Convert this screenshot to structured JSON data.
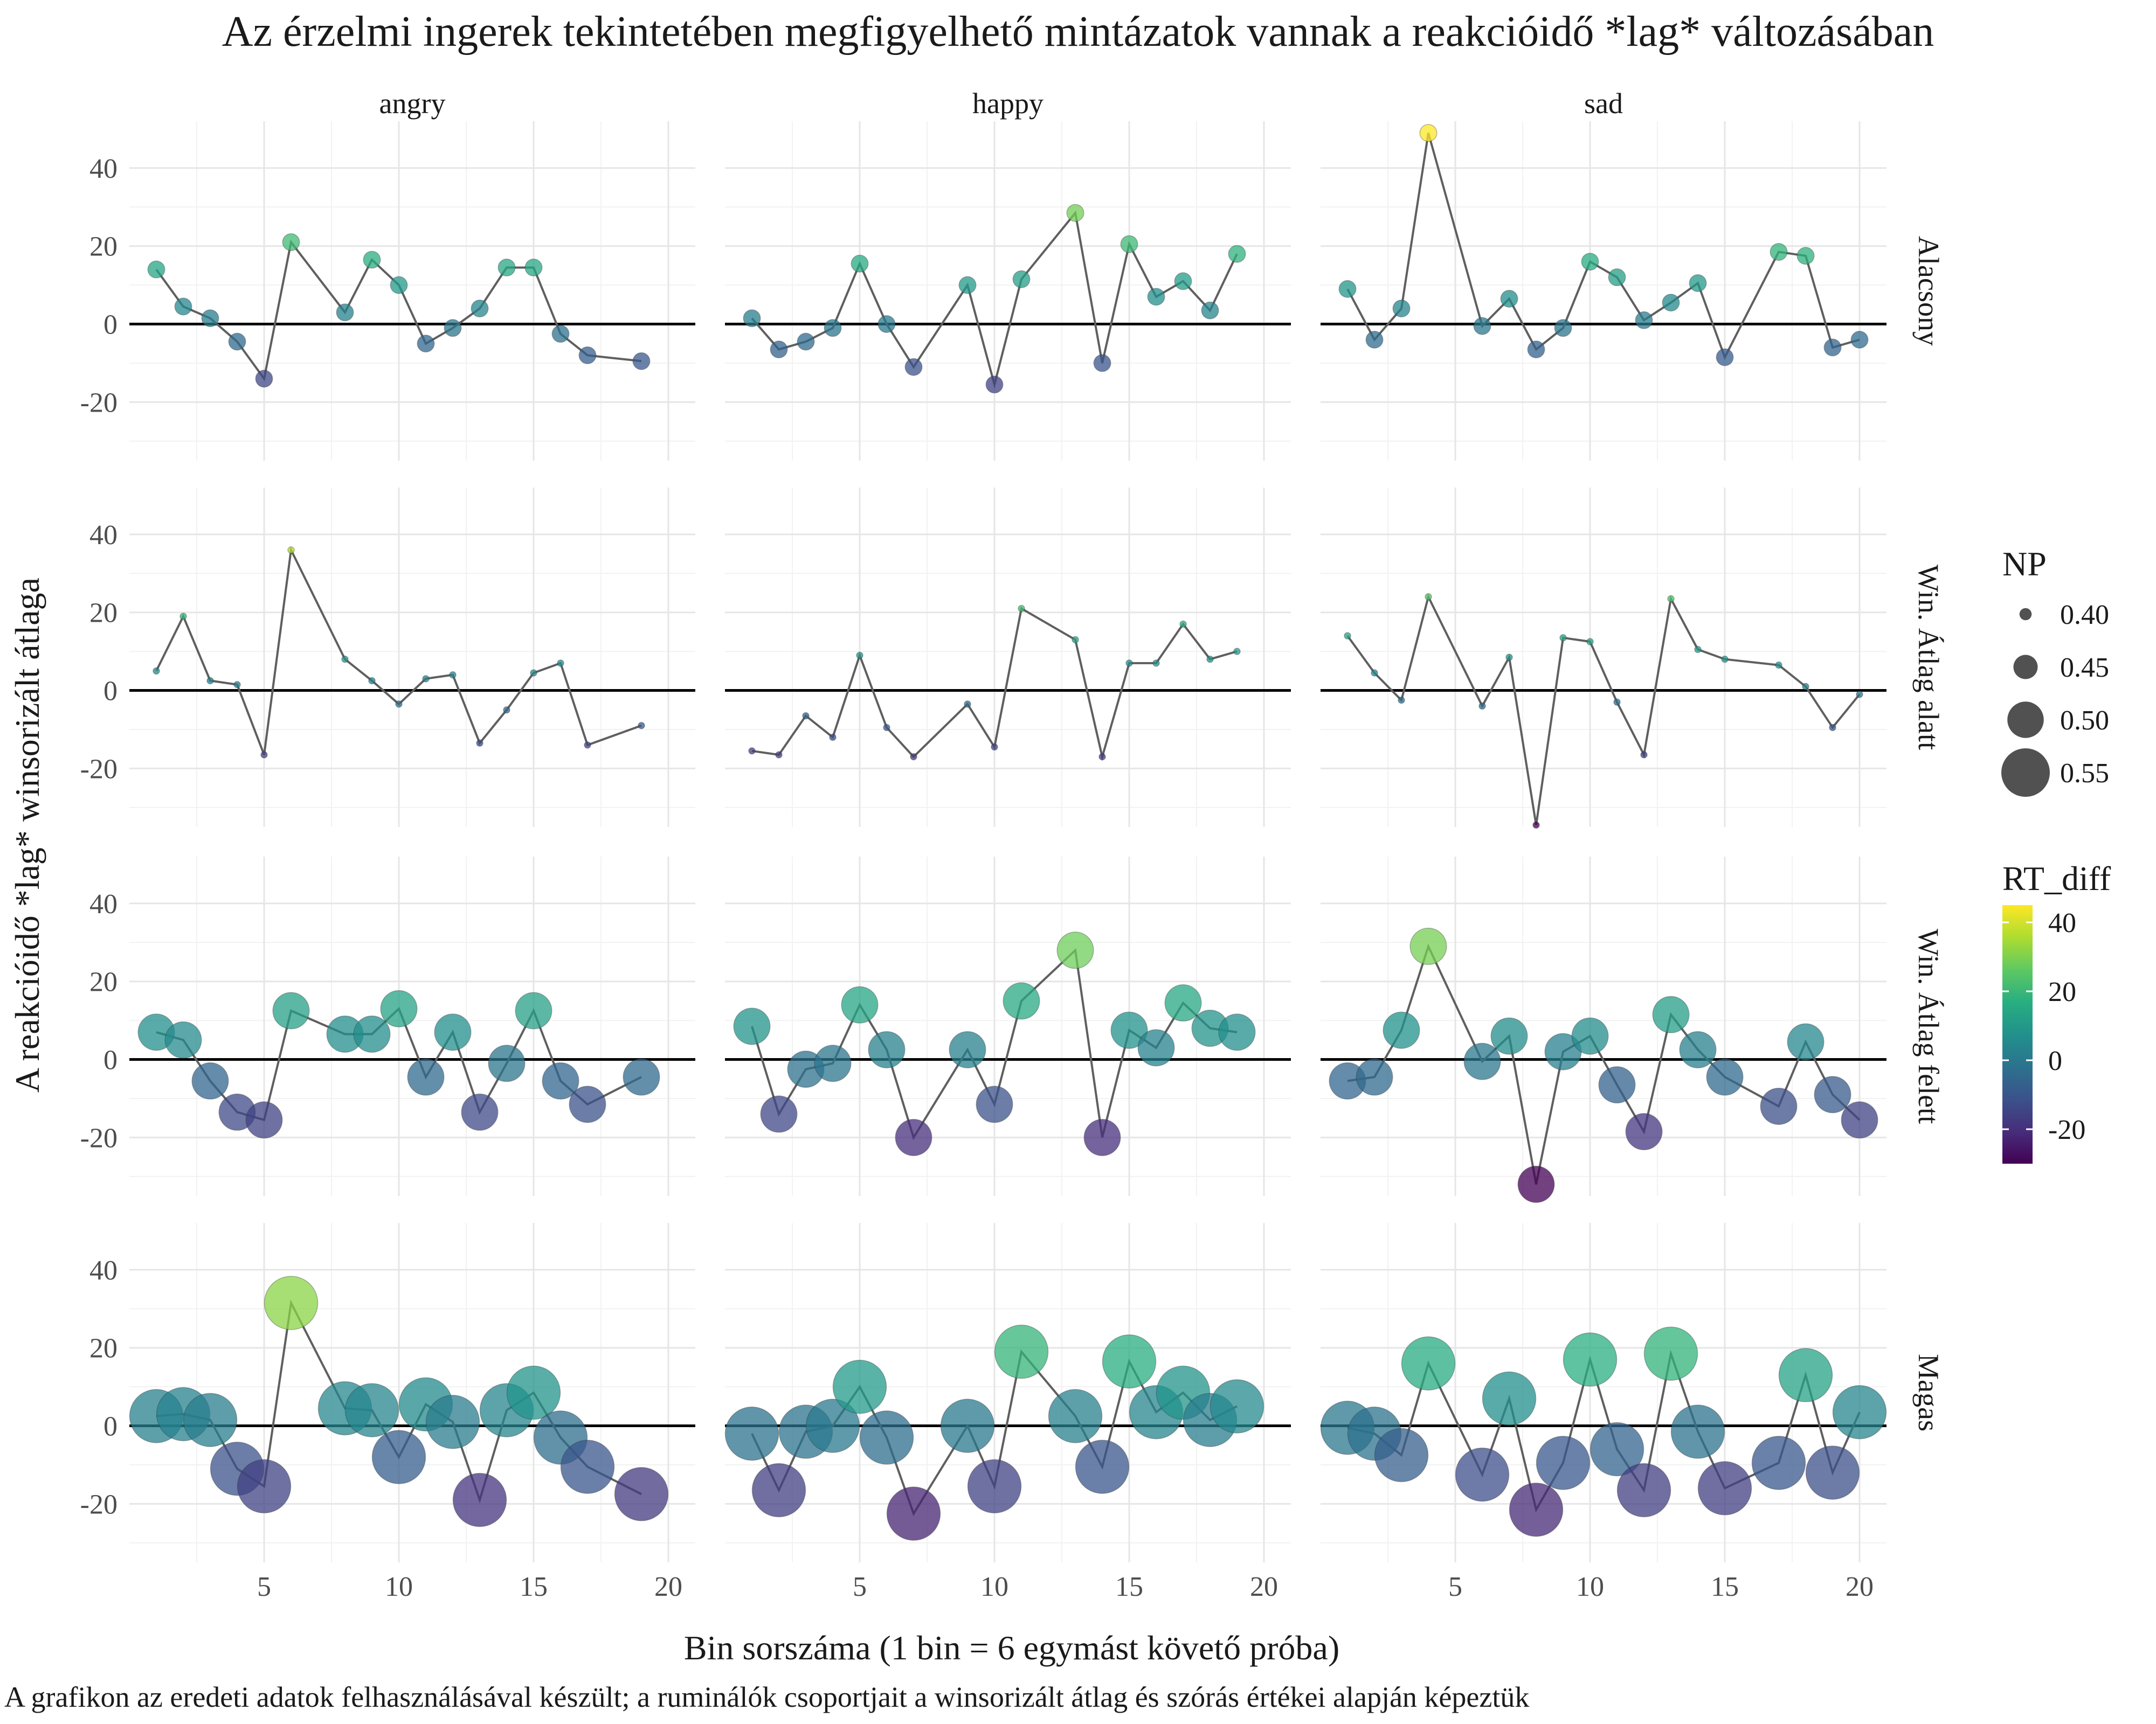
{
  "chart_data": {
    "type": "scatter",
    "title": "Az érzelmi ingerek tekintetében megfigyelhető mintázatok vannak a reakcióidő *lag* változásában",
    "xlabel": "Bin sorszáma (1 bin = 6 egymást követő próba)",
    "ylabel": "A reakcióidő *lag* winsorizált átlaga",
    "caption": "A grafikon az eredeti adatok felhasználásával készült; a ruminálók csoportjait a winsorizált átlag és szórás értékei alapján képeztük",
    "columns": [
      "angry",
      "happy",
      "sad"
    ],
    "rows": [
      "Alacsony",
      "Win. Átlag alatt",
      "Win. Átlag felett",
      "Magas"
    ],
    "x_ticks": [
      5,
      10,
      15,
      20
    ],
    "y_ticks": [
      -20,
      0,
      20,
      40
    ],
    "xlim": [
      0,
      21
    ],
    "ylim": [
      -35,
      52
    ],
    "hline": 0,
    "legend_size": {
      "title": "NP",
      "values": [
        0.4,
        0.45,
        0.5,
        0.55
      ],
      "labels": [
        "0.40",
        "0.45",
        "0.50",
        "0.55"
      ]
    },
    "legend_color": {
      "title": "RT_diff",
      "range": [
        -30,
        45
      ],
      "ticks": [
        40,
        20,
        0,
        -20
      ],
      "colormap": "viridis"
    },
    "row_np": [
      0.42,
      0.37,
      0.5,
      0.57
    ],
    "panels": [
      {
        "row": "Alacsony",
        "col": "angry",
        "points": [
          [
            1,
            14
          ],
          [
            2,
            4.5
          ],
          [
            3,
            1.5
          ],
          [
            4,
            -4.5
          ],
          [
            5,
            -14
          ],
          [
            6,
            21
          ],
          [
            8,
            3
          ],
          [
            9,
            16.5
          ],
          [
            10,
            10
          ],
          [
            11,
            -5
          ],
          [
            12,
            -1
          ],
          [
            13,
            4
          ],
          [
            14,
            14.5
          ],
          [
            15,
            14.5
          ],
          [
            16,
            -2.5
          ],
          [
            17,
            -8
          ],
          [
            19,
            -9.5
          ]
        ]
      },
      {
        "row": "Alacsony",
        "col": "happy",
        "points": [
          [
            1,
            1.5
          ],
          [
            2,
            -6.5
          ],
          [
            3,
            -4.5
          ],
          [
            4,
            -1
          ],
          [
            5,
            15.5
          ],
          [
            6,
            0
          ],
          [
            7,
            -11
          ],
          [
            9,
            10
          ],
          [
            10,
            -15.5
          ],
          [
            11,
            11.5
          ],
          [
            13,
            28.5
          ],
          [
            14,
            -10
          ],
          [
            15,
            20.5
          ],
          [
            16,
            7
          ],
          [
            17,
            11
          ],
          [
            18,
            3.5
          ],
          [
            19,
            18
          ]
        ]
      },
      {
        "row": "Alacsony",
        "col": "sad",
        "points": [
          [
            1,
            9
          ],
          [
            2,
            -4
          ],
          [
            3,
            4
          ],
          [
            4,
            49
          ],
          [
            6,
            -0.5
          ],
          [
            7,
            6.5
          ],
          [
            8,
            -6.5
          ],
          [
            9,
            -1
          ],
          [
            10,
            16
          ],
          [
            11,
            12
          ],
          [
            12,
            1
          ],
          [
            13,
            5.5
          ],
          [
            14,
            10.5
          ],
          [
            15,
            -8.5
          ],
          [
            17,
            18.5
          ],
          [
            18,
            17.5
          ],
          [
            19,
            -6
          ],
          [
            20,
            -4
          ]
        ]
      },
      {
        "row": "Win. Átlag alatt",
        "col": "angry",
        "points": [
          [
            1,
            5
          ],
          [
            2,
            19
          ],
          [
            3,
            2.5
          ],
          [
            4,
            1.5
          ],
          [
            5,
            -16.5
          ],
          [
            6,
            36
          ],
          [
            8,
            8
          ],
          [
            9,
            2.5
          ],
          [
            10,
            -3.5
          ],
          [
            11,
            3
          ],
          [
            12,
            4
          ],
          [
            13,
            -13.5
          ],
          [
            14,
            -5
          ],
          [
            15,
            4.5
          ],
          [
            16,
            7
          ],
          [
            17,
            -14
          ],
          [
            19,
            -9
          ]
        ]
      },
      {
        "row": "Win. Átlag alatt",
        "col": "happy",
        "points": [
          [
            1,
            -15.5
          ],
          [
            2,
            -16.5
          ],
          [
            3,
            -6.5
          ],
          [
            4,
            -12
          ],
          [
            5,
            9
          ],
          [
            6,
            -9.5
          ],
          [
            7,
            -17
          ],
          [
            9,
            -3.5
          ],
          [
            10,
            -14.5
          ],
          [
            11,
            21
          ],
          [
            13,
            13
          ],
          [
            14,
            -17
          ],
          [
            15,
            7
          ],
          [
            16,
            7
          ],
          [
            17,
            17
          ],
          [
            18,
            8
          ],
          [
            19,
            10
          ]
        ]
      },
      {
        "row": "Win. Átlag alatt",
        "col": "sad",
        "points": [
          [
            1,
            14
          ],
          [
            2,
            4.5
          ],
          [
            3,
            -2.5
          ],
          [
            4,
            24
          ],
          [
            6,
            -4
          ],
          [
            7,
            8.5
          ],
          [
            8,
            -34.5
          ],
          [
            9,
            13.5
          ],
          [
            10,
            12.5
          ],
          [
            11,
            -3
          ],
          [
            12,
            -16.5
          ],
          [
            13,
            23.5
          ],
          [
            14,
            10.5
          ],
          [
            15,
            8
          ],
          [
            17,
            6.5
          ],
          [
            18,
            1
          ],
          [
            19,
            -9.5
          ],
          [
            20,
            -1
          ]
        ]
      },
      {
        "row": "Win. Átlag felett",
        "col": "angry",
        "points": [
          [
            1,
            7
          ],
          [
            2,
            5
          ],
          [
            3,
            -5.5
          ],
          [
            4,
            -13.5
          ],
          [
            5,
            -15.5
          ],
          [
            6,
            12.5
          ],
          [
            8,
            6.5
          ],
          [
            9,
            6.5
          ],
          [
            10,
            13
          ],
          [
            11,
            -4.5
          ],
          [
            12,
            7
          ],
          [
            13,
            -13.5
          ],
          [
            14,
            -1
          ],
          [
            15,
            12.5
          ],
          [
            16,
            -5.5
          ],
          [
            17,
            -11.5
          ],
          [
            19,
            -4.5
          ]
        ]
      },
      {
        "row": "Win. Átlag felett",
        "col": "happy",
        "points": [
          [
            1,
            8.5
          ],
          [
            2,
            -14
          ],
          [
            3,
            -2.5
          ],
          [
            4,
            -1
          ],
          [
            5,
            14
          ],
          [
            6,
            2.5
          ],
          [
            7,
            -20
          ],
          [
            9,
            2.5
          ],
          [
            10,
            -11.5
          ],
          [
            11,
            15
          ],
          [
            13,
            28
          ],
          [
            14,
            -20
          ],
          [
            15,
            7.5
          ],
          [
            16,
            3
          ],
          [
            17,
            14.5
          ],
          [
            18,
            8
          ],
          [
            19,
            7
          ]
        ]
      },
      {
        "row": "Win. Átlag felett",
        "col": "sad",
        "points": [
          [
            1,
            -5.5
          ],
          [
            2,
            -4.5
          ],
          [
            3,
            7.5
          ],
          [
            4,
            29
          ],
          [
            6,
            -0.5
          ],
          [
            7,
            6
          ],
          [
            8,
            -32
          ],
          [
            9,
            2
          ],
          [
            10,
            6
          ],
          [
            11,
            -6.5
          ],
          [
            12,
            -18.5
          ],
          [
            13,
            11.5
          ],
          [
            14,
            2.5
          ],
          [
            15,
            -4.5
          ],
          [
            17,
            -12
          ],
          [
            18,
            4.5
          ],
          [
            19,
            -9
          ],
          [
            20,
            -15.5
          ]
        ]
      },
      {
        "row": "Magas",
        "col": "angry",
        "points": [
          [
            1,
            2.5
          ],
          [
            2,
            3
          ],
          [
            3,
            1.5
          ],
          [
            4,
            -11
          ],
          [
            5,
            -15.5
          ],
          [
            6,
            31.5
          ],
          [
            8,
            4.5
          ],
          [
            9,
            4
          ],
          [
            10,
            -8
          ],
          [
            11,
            5.5
          ],
          [
            12,
            1
          ],
          [
            13,
            -19
          ],
          [
            14,
            4
          ],
          [
            15,
            8.5
          ],
          [
            16,
            -3
          ],
          [
            17,
            -10.5
          ],
          [
            19,
            -17.5
          ]
        ]
      },
      {
        "row": "Magas",
        "col": "happy",
        "points": [
          [
            1,
            -2
          ],
          [
            2,
            -16.5
          ],
          [
            3,
            -1.5
          ],
          [
            4,
            0
          ],
          [
            5,
            10
          ],
          [
            6,
            -3
          ],
          [
            7,
            -22.5
          ],
          [
            9,
            0
          ],
          [
            10,
            -15.5
          ],
          [
            11,
            19
          ],
          [
            13,
            2.5
          ],
          [
            14,
            -10.5
          ],
          [
            15,
            16.5
          ],
          [
            16,
            3.5
          ],
          [
            17,
            8.5
          ],
          [
            18,
            1.5
          ],
          [
            19,
            5
          ]
        ]
      },
      {
        "row": "Magas",
        "col": "sad",
        "points": [
          [
            1,
            -0.5
          ],
          [
            2,
            -2
          ],
          [
            3,
            -7.5
          ],
          [
            4,
            16
          ],
          [
            6,
            -12.5
          ],
          [
            7,
            7
          ],
          [
            8,
            -21.5
          ],
          [
            9,
            -9.5
          ],
          [
            10,
            17
          ],
          [
            11,
            -6
          ],
          [
            12,
            -16.5
          ],
          [
            13,
            18.5
          ],
          [
            14,
            -1.5
          ],
          [
            15,
            -16
          ],
          [
            17,
            -9.5
          ],
          [
            18,
            13
          ],
          [
            19,
            -12
          ],
          [
            20,
            3.5
          ]
        ]
      }
    ]
  }
}
